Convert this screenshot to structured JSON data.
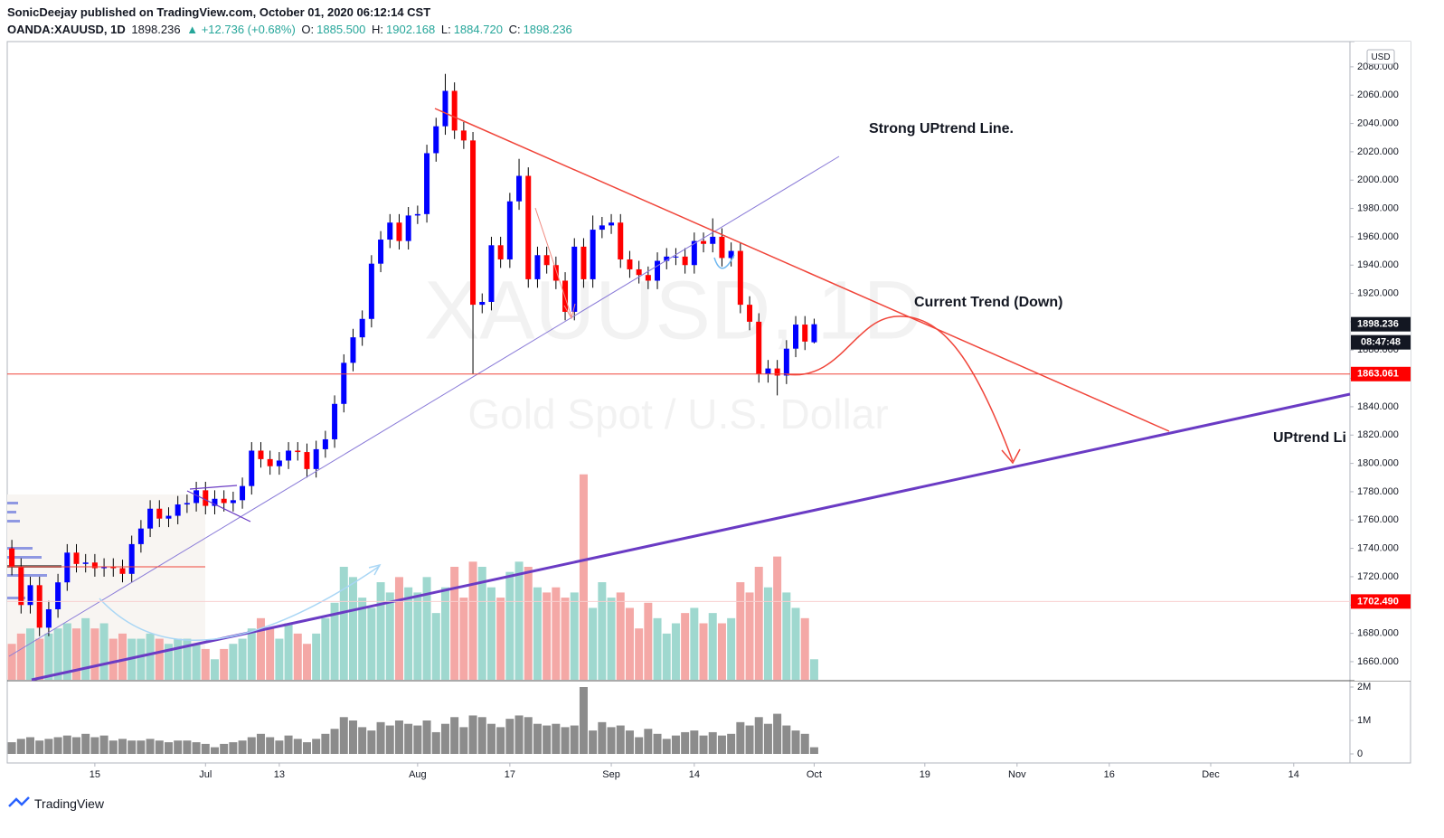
{
  "header": {
    "publisher": "SonicDeejay published on TradingView.com, October 01, 2020 06:12:14 CST",
    "symbol": "OANDA:XAUUSD, 1D",
    "last": "1898.236",
    "change": "▲ +12.736 (+0.68%)",
    "o_label": "O:",
    "o": "1885.500",
    "h_label": "H:",
    "h": "1902.168",
    "l_label": "L:",
    "l": "1884.720",
    "c_label": "C:",
    "c": "1898.236"
  },
  "chart_data": {
    "type": "candlestick",
    "watermark": "XAUUSD, 1D",
    "watermark_subtitle": "Gold Spot / U.S. Dollar",
    "currency": "USD",
    "annotations": [
      "Strong UPtrend Line.",
      "Current Trend (Down)",
      "UPtrend Li"
    ],
    "categories": [
      null,
      null,
      null,
      null,
      null,
      null,
      null,
      null,
      null,
      null,
      null,
      null,
      null,
      null,
      null,
      null,
      null,
      null,
      null,
      null,
      null,
      null,
      null,
      null,
      null,
      null,
      null,
      null,
      null,
      null,
      null,
      null,
      null,
      null,
      null,
      null,
      null,
      null,
      null,
      null,
      null,
      null,
      null,
      null,
      null,
      null,
      null,
      null,
      null,
      null,
      null,
      null,
      null,
      null,
      null,
      null,
      null,
      null,
      null,
      null,
      null,
      null,
      null,
      null,
      null,
      null,
      null,
      null,
      null,
      null,
      null,
      null,
      null,
      null,
      null,
      null,
      null,
      null,
      null,
      null,
      null,
      null,
      null,
      null,
      null,
      null,
      null,
      null
    ],
    "open": [
      1740,
      1727,
      1700,
      1714,
      1684,
      1697,
      1716,
      1737,
      1729,
      1730,
      1726,
      1727,
      1726,
      1722,
      1743,
      1754,
      1768,
      1761,
      1763,
      1771,
      1772,
      1781,
      1770,
      1775,
      1772,
      1774,
      1784,
      1809,
      1803,
      1798,
      1802,
      1809,
      1808,
      1796,
      1810,
      1817,
      1842,
      1871,
      1889,
      1902,
      1941,
      1958,
      1970,
      1957,
      1975,
      1976,
      2019,
      2038,
      2063,
      2035,
      2028,
      1912,
      1914,
      1954,
      1944,
      1985,
      2003,
      1930,
      1947,
      1940,
      1929,
      1907,
      1953,
      1930,
      1965,
      1968,
      1970,
      1944,
      1937,
      1933,
      1929,
      1943,
      1946,
      1946,
      1940,
      1957,
      1955,
      1960,
      1945,
      1950,
      1912,
      1900,
      1863,
      1867,
      1862,
      1881,
      1898,
      1885.5
    ],
    "high": [
      1746,
      1733,
      1720,
      1720,
      1703,
      1722,
      1743,
      1743,
      1736,
      1736,
      1733,
      1733,
      1732,
      1749,
      1760,
      1774,
      1774,
      1769,
      1777,
      1778,
      1787,
      1787,
      1781,
      1781,
      1780,
      1790,
      1815,
      1815,
      1809,
      1808,
      1815,
      1815,
      1814,
      1816,
      1823,
      1848,
      1877,
      1895,
      1908,
      1947,
      1964,
      1976,
      1976,
      1981,
      1982,
      2025,
      2044,
      2075,
      2069,
      2041,
      2034,
      1920,
      1960,
      1960,
      1991,
      2015,
      2009,
      1953,
      1953,
      1946,
      1935,
      1959,
      1959,
      1975,
      1974,
      1976,
      1976,
      1950,
      1943,
      1939,
      1949,
      1952,
      1952,
      1952,
      1963,
      1963,
      1973,
      1966,
      1956,
      1956,
      1918,
      1906,
      1873,
      1873,
      1887,
      1904,
      1904,
      1902.168
    ],
    "low": [
      1721,
      1694,
      1694,
      1678,
      1678,
      1691,
      1710,
      1723,
      1723,
      1720,
      1720,
      1720,
      1716,
      1716,
      1737,
      1748,
      1755,
      1755,
      1757,
      1765,
      1766,
      1764,
      1764,
      1766,
      1766,
      1768,
      1778,
      1797,
      1792,
      1792,
      1796,
      1802,
      1790,
      1790,
      1804,
      1811,
      1836,
      1865,
      1883,
      1896,
      1935,
      1952,
      1951,
      1951,
      1969,
      1970,
      2013,
      2032,
      2029,
      2022,
      1863,
      1906,
      1908,
      1938,
      1938,
      1979,
      1924,
      1924,
      1934,
      1923,
      1901,
      1901,
      1924,
      1924,
      1959,
      1962,
      1938,
      1931,
      1927,
      1923,
      1923,
      1937,
      1940,
      1934,
      1934,
      1949,
      1949,
      1939,
      1939,
      1906,
      1894,
      1857,
      1857,
      1848,
      1856,
      1875,
      1880,
      1884.72
    ],
    "close": [
      1727,
      1700,
      1714,
      1684,
      1697,
      1716,
      1737,
      1729,
      1730,
      1726,
      1727,
      1726,
      1722,
      1743,
      1754,
      1768,
      1761,
      1763,
      1771,
      1772,
      1781,
      1770,
      1775,
      1772,
      1774,
      1784,
      1809,
      1803,
      1798,
      1802,
      1809,
      1808,
      1796,
      1810,
      1817,
      1842,
      1871,
      1889,
      1902,
      1941,
      1958,
      1970,
      1957,
      1975,
      1976,
      2019,
      2038,
      2063,
      2035,
      2028,
      1912,
      1914,
      1954,
      1944,
      1985,
      2003,
      1930,
      1947,
      1940,
      1929,
      1907,
      1953,
      1930,
      1965,
      1968,
      1970,
      1944,
      1937,
      1933,
      1929,
      1943,
      1946,
      1946,
      1940,
      1957,
      1955,
      1960,
      1945,
      1950,
      1912,
      1900,
      1863,
      1867,
      1862,
      1881,
      1898,
      1886,
      1898.236
    ],
    "up_color": "#0000ff",
    "down_color": "#ff0000",
    "ylim": [
      1647.2,
      2097.8
    ],
    "yticks": [
      {
        "value": 1660,
        "label": "1660.000"
      },
      {
        "value": 1680,
        "label": "1680.000"
      },
      {
        "value": 1700,
        "label": "1700.000"
      },
      {
        "value": 1720,
        "label": "1720.000"
      },
      {
        "value": 1740,
        "label": "1740.000"
      },
      {
        "value": 1760,
        "label": "1760.000"
      },
      {
        "value": 1780,
        "label": "1780.000"
      },
      {
        "value": 1800,
        "label": "1800.000"
      },
      {
        "value": 1820,
        "label": "1820.000"
      },
      {
        "value": 1840,
        "label": "1840.000"
      },
      {
        "value": 1860,
        "label": "1860.000"
      },
      {
        "value": 1880,
        "label": "1880.000"
      },
      {
        "value": 1900,
        "label": "1900.000"
      },
      {
        "value": 1920,
        "label": "1920.000"
      },
      {
        "value": 1940,
        "label": "1940.000"
      },
      {
        "value": 1960,
        "label": "1960.000"
      },
      {
        "value": 1980,
        "label": "1980.000"
      },
      {
        "value": 2000,
        "label": "2000.000"
      },
      {
        "value": 2020,
        "label": "2020.000"
      },
      {
        "value": 2040,
        "label": "2040.000"
      },
      {
        "value": 2060,
        "label": "2060.000"
      },
      {
        "value": 2080,
        "label": "2080.000"
      }
    ],
    "price_labels": [
      {
        "value": 1898.236,
        "label": "1898.236",
        "color": "#131722"
      },
      {
        "value": 1863.061,
        "label": "1863.061",
        "color": "#ff0000",
        "line_color": "#f0453a"
      },
      {
        "value": 1702.49,
        "label": "1702.490",
        "color": "#ff0000",
        "line_color": "#f9cfcf"
      }
    ],
    "countdown": "08:47:48",
    "xlim": [
      -0.5,
      145.1
    ],
    "xticks": [
      {
        "value": 9,
        "label": "15"
      },
      {
        "value": 21,
        "label": "Jul"
      },
      {
        "value": 29,
        "label": "13"
      },
      {
        "value": 44,
        "label": "Aug"
      },
      {
        "value": 54,
        "label": "17"
      },
      {
        "value": 65,
        "label": "Sep"
      },
      {
        "value": 74,
        "label": "14"
      },
      {
        "value": 87,
        "label": "Oct"
      },
      {
        "value": 99,
        "label": "19"
      },
      {
        "value": 109,
        "label": "Nov"
      },
      {
        "value": 119,
        "label": "16"
      },
      {
        "value": 130,
        "label": "Dec"
      },
      {
        "value": 139,
        "label": "14"
      }
    ],
    "volume": {
      "values": [
        0.35,
        0.45,
        0.5,
        0.4,
        0.45,
        0.5,
        0.55,
        0.5,
        0.6,
        0.5,
        0.55,
        0.4,
        0.45,
        0.4,
        0.4,
        0.45,
        0.4,
        0.35,
        0.4,
        0.4,
        0.35,
        0.3,
        0.2,
        0.3,
        0.35,
        0.4,
        0.5,
        0.6,
        0.5,
        0.4,
        0.55,
        0.45,
        0.35,
        0.45,
        0.6,
        0.75,
        1.1,
        1.0,
        0.8,
        0.7,
        0.95,
        0.85,
        1.0,
        0.9,
        0.85,
        1.0,
        0.65,
        0.9,
        1.1,
        0.8,
        1.15,
        1.1,
        0.9,
        0.8,
        1.05,
        1.15,
        1.1,
        0.9,
        0.85,
        0.9,
        0.8,
        0.85,
        2.0,
        0.7,
        0.95,
        0.8,
        0.85,
        0.7,
        0.5,
        0.75,
        0.6,
        0.45,
        0.55,
        0.65,
        0.7,
        0.55,
        0.65,
        0.55,
        0.6,
        0.95,
        0.85,
        1.1,
        0.9,
        1.2,
        0.85,
        0.7,
        0.6,
        0.2
      ],
      "color": "#8c8c8c",
      "overlay_up_color": "#9fd8cf",
      "overlay_down_color": "#f4a8a6",
      "ylim": [
        0,
        2.2
      ],
      "yticks": [
        0,
        {
          "value": 1,
          "label": "1M"
        },
        {
          "value": 2,
          "label": "2M"
        }
      ]
    }
  },
  "footer": {
    "brand": "TradingView"
  }
}
